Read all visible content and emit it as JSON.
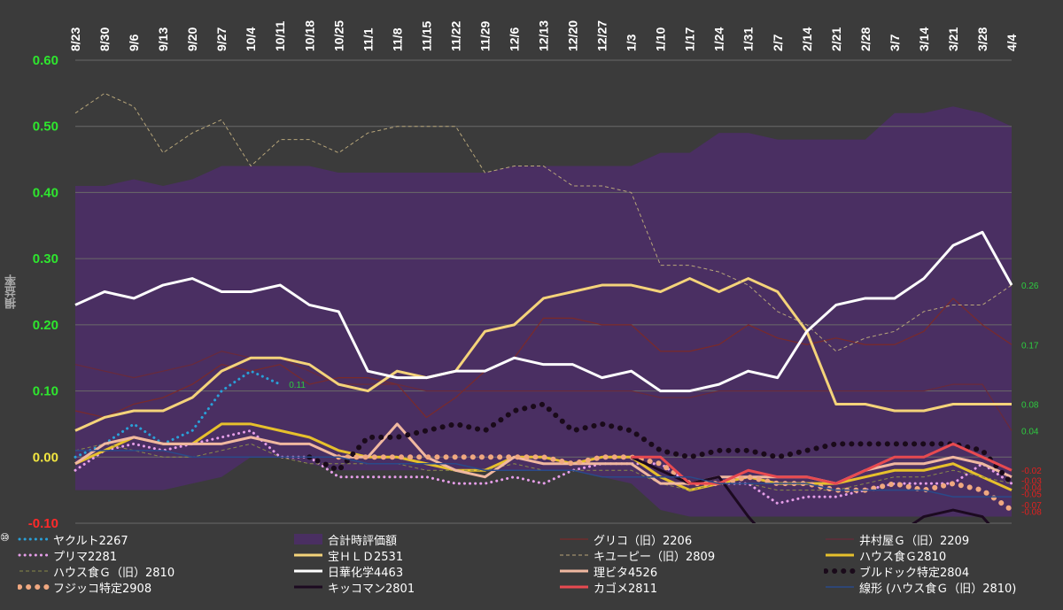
{
  "chart_data": {
    "type": "line",
    "ylabel": "損益率",
    "ylim": [
      -0.1,
      0.6
    ],
    "yticks": [
      "0.60",
      "0.50",
      "0.40",
      "0.30",
      "0.20",
      "0.10",
      "0.00",
      "-0.10"
    ],
    "legend_prefix": "⑩",
    "categories": [
      "8/23",
      "8/30",
      "9/6",
      "9/13",
      "9/20",
      "9/27",
      "10/4",
      "10/11",
      "10/18",
      "10/25",
      "11/1",
      "11/8",
      "11/15",
      "11/22",
      "11/29",
      "12/6",
      "12/13",
      "12/20",
      "12/27",
      "1/3",
      "1/10",
      "1/17",
      "1/24",
      "1/31",
      "2/7",
      "2/14",
      "2/21",
      "2/28",
      "3/7",
      "3/14",
      "3/21",
      "3/28",
      "4/4"
    ],
    "area": {
      "name": "合計時評価額",
      "upper": [
        0.41,
        0.41,
        0.42,
        0.41,
        0.42,
        0.44,
        0.44,
        0.44,
        0.44,
        0.43,
        0.43,
        0.43,
        0.43,
        0.43,
        0.43,
        0.44,
        0.44,
        0.44,
        0.44,
        0.44,
        0.46,
        0.46,
        0.49,
        0.49,
        0.48,
        0.48,
        0.48,
        0.48,
        0.52,
        0.52,
        0.53,
        0.52,
        0.5
      ],
      "lower": [
        -0.05,
        -0.05,
        -0.05,
        -0.05,
        -0.04,
        -0.03,
        0.0,
        0.0,
        -0.01,
        -0.02,
        -0.02,
        -0.02,
        -0.02,
        -0.02,
        -0.02,
        -0.02,
        -0.02,
        -0.02,
        -0.03,
        -0.04,
        -0.08,
        -0.09,
        -0.09,
        -0.09,
        -0.09,
        -0.09,
        -0.09,
        -0.09,
        -0.09,
        -0.09,
        -0.09,
        -0.09,
        -0.09
      ],
      "color": "#4a2f62"
    },
    "series": [
      {
        "name": "グリコ（旧）2206",
        "color": "#7a2a2a",
        "style": "thin",
        "values": [
          0.07,
          0.06,
          0.08,
          0.09,
          0.11,
          0.14,
          0.13,
          0.14,
          0.11,
          0.12,
          0.12,
          0.11,
          0.06,
          0.09,
          0.13,
          0.15,
          0.21,
          0.21,
          0.2,
          0.2,
          0.16,
          0.16,
          0.17,
          0.2,
          0.18,
          0.17,
          0.18,
          0.17,
          0.17,
          0.19,
          0.24,
          0.2,
          0.17
        ]
      },
      {
        "name": "井村屋Ｇ（旧）2209",
        "color": "#6a2a3a",
        "style": "thin",
        "values": [
          0.14,
          0.13,
          0.12,
          0.13,
          0.14,
          0.16,
          0.15,
          0.15,
          0.13,
          0.11,
          0.11,
          0.11,
          0.1,
          0.1,
          0.1,
          0.1,
          0.1,
          0.1,
          0.1,
          0.1,
          0.09,
          0.09,
          0.1,
          0.1,
          0.1,
          0.1,
          0.1,
          0.1,
          0.1,
          0.1,
          0.11,
          0.11,
          0.04
        ]
      },
      {
        "name": "ヤクルト2267",
        "color": "#2aa0d8",
        "style": "dotted",
        "values": [
          0.0,
          0.02,
          0.05,
          0.02,
          0.04,
          0.1,
          0.13,
          0.11,
          null,
          null,
          null,
          null,
          null,
          null,
          null,
          null,
          null,
          null,
          null,
          null,
          null,
          null,
          null,
          null,
          null,
          null,
          null,
          null,
          null,
          null,
          null,
          null,
          null
        ]
      },
      {
        "name": "プリマ2281",
        "color": "#e59ee8",
        "style": "dotted",
        "values": [
          -0.02,
          0.01,
          0.02,
          0.01,
          0.02,
          0.03,
          0.04,
          0.0,
          0.0,
          -0.03,
          -0.03,
          -0.03,
          -0.03,
          -0.04,
          -0.04,
          -0.03,
          -0.04,
          -0.02,
          -0.01,
          -0.01,
          -0.01,
          -0.04,
          -0.04,
          -0.04,
          -0.07,
          -0.06,
          -0.06,
          -0.05,
          -0.04,
          -0.04,
          -0.04,
          -0.01,
          -0.04
        ]
      },
      {
        "name": "宝ＨＬＤ2531",
        "color": "#f4d37a",
        "style": "solid",
        "values": [
          0.04,
          0.06,
          0.07,
          0.07,
          0.09,
          0.13,
          0.15,
          0.15,
          0.14,
          0.11,
          0.1,
          0.13,
          0.12,
          0.13,
          0.19,
          0.2,
          0.24,
          0.25,
          0.26,
          0.26,
          0.25,
          0.27,
          0.25,
          0.27,
          0.25,
          0.19,
          0.08,
          0.08,
          0.07,
          0.07,
          0.08,
          0.08,
          0.08
        ]
      },
      {
        "name": "キユーピー（旧）2809",
        "color": "#b8a67a",
        "style": "dashed",
        "values": [
          0.52,
          0.55,
          0.53,
          0.46,
          0.49,
          0.51,
          0.44,
          0.48,
          0.48,
          0.46,
          0.49,
          0.5,
          0.5,
          0.5,
          0.43,
          0.44,
          0.44,
          0.41,
          0.41,
          0.4,
          0.29,
          0.29,
          0.28,
          0.26,
          0.22,
          0.2,
          0.16,
          0.18,
          0.19,
          0.22,
          0.23,
          0.23,
          0.26
        ]
      },
      {
        "name": "ハウス食Ｇ2810",
        "color": "#e6c02c",
        "style": "solid",
        "values": [
          -0.01,
          0.01,
          0.03,
          0.02,
          0.02,
          0.05,
          0.05,
          0.04,
          0.03,
          0.01,
          0.0,
          0.0,
          -0.01,
          -0.02,
          -0.02,
          0.0,
          0.0,
          -0.01,
          0.0,
          0.0,
          -0.03,
          -0.05,
          -0.04,
          -0.03,
          -0.04,
          -0.04,
          -0.04,
          -0.03,
          -0.02,
          -0.02,
          -0.01,
          -0.03,
          -0.05
        ]
      },
      {
        "name": "ハウス食Ｇ（旧）2810",
        "color": "#8a8a4a",
        "style": "dashed",
        "values": [
          0.01,
          0.02,
          0.01,
          0.0,
          0.0,
          0.01,
          0.02,
          0.0,
          -0.01,
          -0.01,
          -0.01,
          -0.01,
          -0.02,
          -0.02,
          -0.02,
          -0.01,
          -0.02,
          -0.02,
          -0.02,
          -0.02,
          -0.04,
          -0.05,
          -0.04,
          -0.04,
          -0.05,
          -0.05,
          -0.05,
          -0.04,
          -0.03,
          -0.03,
          -0.02,
          -0.03,
          -0.04
        ]
      },
      {
        "name": "日華化学4463",
        "color": "#ffffff",
        "style": "solid",
        "values": [
          0.23,
          0.25,
          0.24,
          0.26,
          0.27,
          0.25,
          0.25,
          0.26,
          0.23,
          0.22,
          0.13,
          0.12,
          0.12,
          0.13,
          0.13,
          0.15,
          0.14,
          0.14,
          0.12,
          0.13,
          0.1,
          0.1,
          0.11,
          0.13,
          0.12,
          0.19,
          0.23,
          0.24,
          0.24,
          0.27,
          0.32,
          0.34,
          0.26
        ]
      },
      {
        "name": "理ビタ4526",
        "color": "#f0b8a0",
        "style": "solid",
        "values": [
          -0.01,
          0.02,
          0.03,
          0.02,
          0.02,
          0.02,
          0.03,
          0.02,
          0.02,
          0.0,
          0.0,
          0.05,
          0.0,
          -0.02,
          -0.03,
          0.0,
          -0.01,
          -0.01,
          -0.01,
          -0.01,
          -0.04,
          -0.04,
          -0.03,
          -0.03,
          -0.03,
          -0.03,
          -0.04,
          -0.02,
          -0.01,
          -0.01,
          0.0,
          -0.01,
          -0.03
        ]
      },
      {
        "name": "ブルドック特定2804",
        "color": "#1a0a1a",
        "style": "bigdot",
        "values": [
          null,
          null,
          null,
          null,
          null,
          null,
          null,
          null,
          0.0,
          -0.02,
          0.03,
          0.03,
          0.04,
          0.05,
          0.04,
          0.07,
          0.08,
          0.04,
          0.05,
          0.04,
          0.01,
          0.0,
          0.01,
          0.01,
          0.0,
          0.01,
          0.02,
          0.02,
          0.02,
          0.02,
          0.02,
          0.01,
          -0.04
        ]
      },
      {
        "name": "フジッコ特定2908",
        "color": "#f0a880",
        "style": "bigdot",
        "values": [
          null,
          null,
          null,
          null,
          null,
          null,
          null,
          null,
          null,
          0.0,
          0.0,
          0.0,
          0.0,
          0.0,
          0.0,
          0.0,
          0.0,
          -0.01,
          0.0,
          0.0,
          -0.01,
          -0.04,
          -0.04,
          -0.03,
          -0.04,
          -0.04,
          -0.05,
          -0.05,
          -0.04,
          -0.05,
          -0.04,
          -0.05,
          -0.08
        ]
      },
      {
        "name": "キッコマン2801",
        "color": "#1c0a20",
        "style": "solid",
        "values": [
          null,
          null,
          null,
          null,
          null,
          null,
          null,
          null,
          null,
          null,
          null,
          null,
          null,
          null,
          null,
          null,
          null,
          null,
          null,
          0.0,
          -0.02,
          -0.04,
          -0.03,
          -0.09,
          -0.14,
          -0.12,
          -0.12,
          -0.12,
          -0.12,
          -0.09,
          -0.08,
          -0.09,
          -0.14
        ]
      },
      {
        "name": "カゴメ2811",
        "color": "#e84a50",
        "style": "solid",
        "values": [
          null,
          null,
          null,
          null,
          null,
          null,
          null,
          null,
          null,
          null,
          null,
          null,
          null,
          null,
          null,
          null,
          null,
          null,
          null,
          0.0,
          0.0,
          -0.04,
          -0.04,
          -0.02,
          -0.03,
          -0.03,
          -0.04,
          -0.02,
          0.0,
          0.0,
          0.02,
          0.0,
          -0.02
        ]
      },
      {
        "name": "線形 (ハウス食Ｇ（旧）2810)",
        "color": "#2a4a8a",
        "style": "trend",
        "values": [
          0.01,
          0.01,
          0.01,
          0.01,
          0.0,
          0.0,
          0.0,
          0.0,
          0.0,
          0.0,
          -0.01,
          -0.01,
          -0.01,
          -0.01,
          -0.02,
          -0.02,
          -0.02,
          -0.02,
          -0.03,
          -0.03,
          -0.03,
          -0.03,
          -0.04,
          -0.04,
          -0.04,
          -0.04,
          -0.05,
          -0.05,
          -0.05,
          -0.05,
          -0.06,
          -0.06,
          -0.06
        ]
      }
    ],
    "annotations": [
      {
        "text": "0.11",
        "cat": 7,
        "y": 0.11,
        "color": "#2ecc40"
      },
      {
        "text": "0.26",
        "cat": 32,
        "y": 0.26,
        "color": "#2ecc40"
      },
      {
        "text": "0.17",
        "cat": 32,
        "y": 0.17,
        "color": "#2ecc40"
      },
      {
        "text": "0.08",
        "cat": 32,
        "y": 0.08,
        "color": "#2ecc40"
      },
      {
        "text": "0.04",
        "cat": 32,
        "y": 0.04,
        "color": "#2ecc40"
      },
      {
        "text": "-0.02",
        "cat": 32,
        "y": -0.02,
        "color": "#e02020"
      },
      {
        "text": "-0.03",
        "cat": 32,
        "y": -0.035,
        "color": "#e02020"
      },
      {
        "text": "-0.04",
        "cat": 32,
        "y": -0.045,
        "color": "#e02020"
      },
      {
        "text": "-0.05",
        "cat": 32,
        "y": -0.055,
        "color": "#e02020"
      },
      {
        "text": "-0.07",
        "cat": 32,
        "y": -0.072,
        "color": "#e02020"
      },
      {
        "text": "-0.08",
        "cat": 32,
        "y": -0.082,
        "color": "#e02020"
      }
    ],
    "legend": [
      {
        "label": "ヤクルト2267",
        "ref": "ヤクルト2267"
      },
      {
        "label": "合計時評価額",
        "ref": "area"
      },
      {
        "label": "グリコ（旧）2206",
        "ref": "グリコ（旧）2206"
      },
      {
        "label": "井村屋Ｇ（旧）2209",
        "ref": "井村屋Ｇ（旧）2209"
      },
      {
        "label": "プリマ2281",
        "ref": "プリマ2281"
      },
      {
        "label": "宝ＨＬＤ2531",
        "ref": "宝ＨＬＤ2531"
      },
      {
        "label": "キユーピー（旧）2809",
        "ref": "キユーピー（旧）2809"
      },
      {
        "label": "ハウス食Ｇ2810",
        "ref": "ハウス食Ｇ2810"
      },
      {
        "label": "ハウス食Ｇ（旧）2810",
        "ref": "ハウス食Ｇ（旧）2810"
      },
      {
        "label": "日華化学4463",
        "ref": "日華化学4463"
      },
      {
        "label": "理ビタ4526",
        "ref": "理ビタ4526"
      },
      {
        "label": "ブルドック特定2804",
        "ref": "ブルドック特定2804"
      },
      {
        "label": "フジッコ特定2908",
        "ref": "フジッコ特定2908"
      },
      {
        "label": "キッコマン2801",
        "ref": "キッコマン2801"
      },
      {
        "label": "カゴメ2811",
        "ref": "カゴメ2811"
      },
      {
        "label": "線形 (ハウス食Ｇ（旧）2810)",
        "ref": "線形 (ハウス食Ｇ（旧）2810)"
      }
    ],
    "colors": {
      "background": "#3b3b3b",
      "grid": "#6a6a6a",
      "ytick": "#2ee62e",
      "ytick_negative": "#ff2a2a",
      "xtick": "#ffffff"
    }
  }
}
